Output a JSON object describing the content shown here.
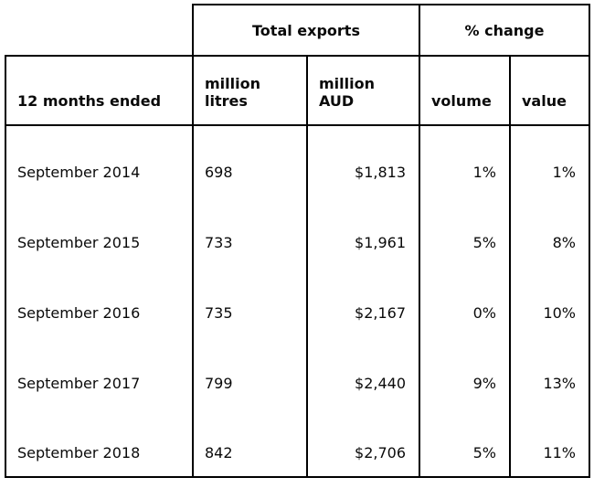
{
  "table": {
    "group_headers": {
      "total_exports": "Total exports",
      "pct_change": "% change"
    },
    "columns": {
      "period": "12 months ended",
      "million_litres": "million\nlitres",
      "million_aud": "million\nAUD",
      "volume": "volume",
      "value": "value"
    },
    "rows": [
      [
        "September 2014",
        "698",
        "$1,813",
        "1%",
        "1%"
      ],
      [
        "September 2015",
        "733",
        "$1,961",
        "5%",
        "8%"
      ],
      [
        "September 2016",
        "735",
        "$2,167",
        "0%",
        "10%"
      ],
      [
        "September 2017",
        "799",
        "$2,440",
        "9%",
        "13%"
      ],
      [
        "September 2018",
        "842",
        "$2,706",
        "5%",
        "11%"
      ]
    ]
  },
  "chart_data": {
    "type": "table",
    "title": "",
    "columns": [
      "12 months ended",
      "Total exports million litres",
      "Total exports million AUD",
      "% change volume",
      "% change value"
    ],
    "rows": [
      [
        "September 2014",
        698,
        1813,
        "1%",
        "1%"
      ],
      [
        "September 2015",
        733,
        1961,
        "5%",
        "8%"
      ],
      [
        "September 2016",
        735,
        2167,
        "0%",
        "10%"
      ],
      [
        "September 2017",
        799,
        2440,
        "9%",
        "13%"
      ],
      [
        "September 2018",
        842,
        2706,
        "5%",
        "11%"
      ]
    ]
  }
}
